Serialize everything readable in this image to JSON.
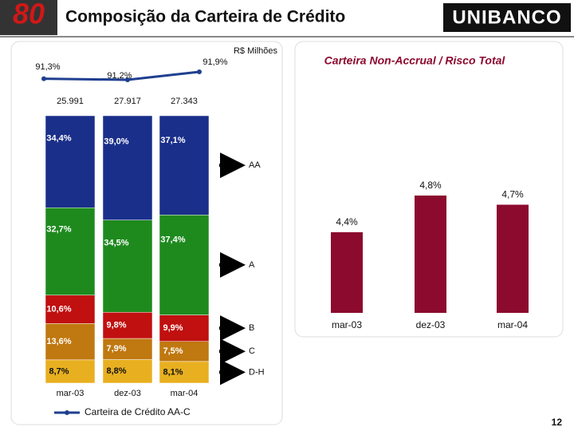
{
  "header": {
    "logo": "80",
    "title": "Composição da Carteira de Crédito",
    "brand": "UNIBANCO"
  },
  "page_number": "12",
  "chart_data": [
    {
      "type": "stacked-bar",
      "unit": "R$ Milhões",
      "categories": [
        "mar-03",
        "dez-03",
        "mar-04"
      ],
      "totals": {
        "values": [
          25991,
          27917,
          27343
        ],
        "value_labels": [
          "25.991",
          "27.917",
          "27.343"
        ]
      },
      "series": [
        {
          "name": "D-H",
          "color": "#e8b020",
          "values": [
            8.7,
            8.8,
            8.1
          ],
          "value_labels": [
            "8,7%",
            "8,8%",
            "8,1%"
          ]
        },
        {
          "name": "C",
          "color": "#c07810",
          "values": [
            13.6,
            7.9,
            7.5
          ],
          "value_labels": [
            "13,6%",
            "7,9%",
            "7,5%"
          ]
        },
        {
          "name": "B",
          "color": "#c01010",
          "values": [
            10.6,
            9.8,
            9.9
          ],
          "value_labels": [
            "10,6%",
            "9,8%",
            "9,9%"
          ]
        },
        {
          "name": "A",
          "color": "#1e8a1e",
          "values": [
            32.7,
            34.5,
            37.4
          ],
          "value_labels": [
            "32,7%",
            "34,5%",
            "37,4%"
          ]
        },
        {
          "name": "AA",
          "color": "#1a2f8a",
          "values": [
            34.4,
            39.0,
            37.1
          ],
          "value_labels": [
            "34,4%",
            "39,0%",
            "37,1%"
          ]
        },
        {
          "name": "Carteira de Crédito AA-C",
          "type": "line",
          "axis": "y2",
          "color": "#1f3f8f",
          "values": [
            91.3,
            91.2,
            91.9
          ],
          "value_labels": [
            "91,3%",
            "91,2%",
            "91,9%"
          ]
        }
      ]
    },
    {
      "type": "bar",
      "title": "Carteira Non-Accrual / Risco Total",
      "categories": [
        "mar-03",
        "dez-03",
        "mar-04"
      ],
      "values": [
        4.4,
        4.8,
        4.7
      ],
      "value_labels": [
        "4,4%",
        "4,8%",
        "4,7%"
      ],
      "color": "#8c0a2e"
    }
  ]
}
